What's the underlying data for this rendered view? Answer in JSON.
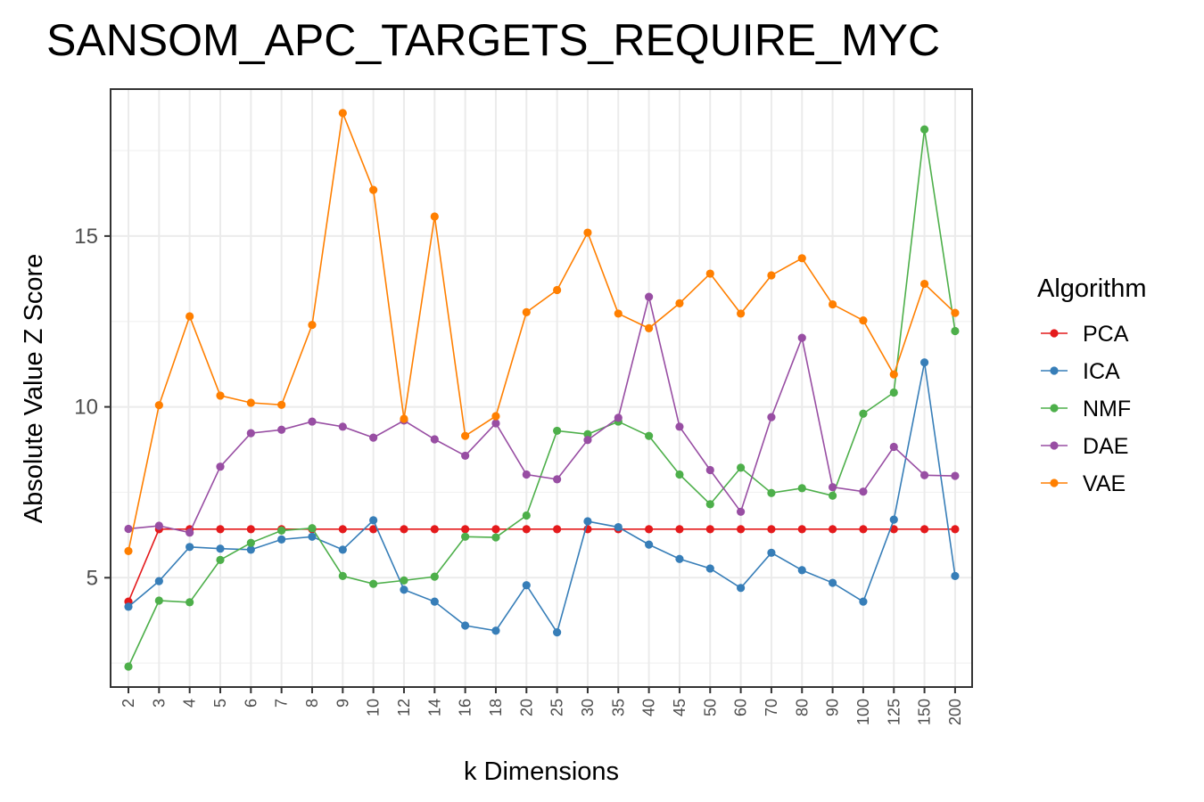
{
  "chart_data": {
    "type": "line",
    "title": "SANSOM_APC_TARGETS_REQUIRE_MYC",
    "xlabel": "k Dimensions",
    "ylabel": "Absolute Value Z Score",
    "categories": [
      "2",
      "3",
      "4",
      "5",
      "6",
      "7",
      "8",
      "9",
      "10",
      "12",
      "14",
      "16",
      "18",
      "20",
      "25",
      "30",
      "35",
      "40",
      "45",
      "50",
      "60",
      "70",
      "80",
      "90",
      "100",
      "125",
      "150",
      "200"
    ],
    "yticks": [
      5,
      10,
      15
    ],
    "ylim": [
      1.8,
      19.3
    ],
    "grid": true,
    "legend": {
      "title": "Algorithm",
      "position": "right"
    },
    "series": [
      {
        "name": "PCA",
        "color": "#e41a1c",
        "values": [
          4.3,
          6.42,
          6.42,
          6.42,
          6.42,
          6.42,
          6.42,
          6.42,
          6.42,
          6.42,
          6.42,
          6.42,
          6.42,
          6.42,
          6.42,
          6.42,
          6.42,
          6.42,
          6.42,
          6.42,
          6.42,
          6.42,
          6.42,
          6.42,
          6.42,
          6.42,
          6.42,
          6.42
        ]
      },
      {
        "name": "ICA",
        "color": "#377eb8",
        "values": [
          4.15,
          4.9,
          5.9,
          5.85,
          5.82,
          6.12,
          6.2,
          5.82,
          6.68,
          4.65,
          4.3,
          3.6,
          3.45,
          4.78,
          3.4,
          6.65,
          6.48,
          5.97,
          5.55,
          5.27,
          4.7,
          5.73,
          5.22,
          4.85,
          4.3,
          6.7,
          11.3,
          5.05
        ]
      },
      {
        "name": "NMF",
        "color": "#4daf4a",
        "values": [
          2.4,
          4.33,
          4.28,
          5.52,
          6.02,
          6.38,
          6.45,
          5.05,
          4.82,
          4.92,
          5.03,
          6.2,
          6.18,
          6.82,
          9.3,
          9.2,
          9.57,
          9.15,
          8.02,
          7.15,
          8.22,
          7.48,
          7.62,
          7.4,
          9.8,
          10.42,
          18.12,
          12.22
        ]
      },
      {
        "name": "DAE",
        "color": "#984ea3",
        "values": [
          6.43,
          6.52,
          6.32,
          8.25,
          9.23,
          9.33,
          9.57,
          9.42,
          9.1,
          9.6,
          9.05,
          8.57,
          9.52,
          8.02,
          7.88,
          9.03,
          9.68,
          13.22,
          9.42,
          8.15,
          6.93,
          9.7,
          12.02,
          7.65,
          7.52,
          8.83,
          8.0,
          7.98
        ]
      },
      {
        "name": "VAE",
        "color": "#ff7f00",
        "values": [
          5.78,
          10.05,
          12.65,
          10.33,
          10.12,
          10.06,
          12.4,
          18.6,
          16.35,
          9.65,
          15.57,
          9.15,
          9.73,
          12.77,
          13.42,
          15.1,
          12.73,
          12.3,
          13.03,
          13.9,
          12.73,
          13.85,
          14.35,
          13.0,
          12.53,
          10.95,
          13.6,
          12.75
        ]
      }
    ]
  }
}
